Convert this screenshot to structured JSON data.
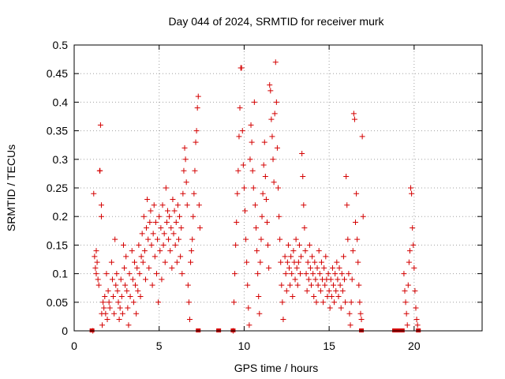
{
  "chart_data": {
    "type": "scatter",
    "title": "Day 044 of 2024, SRMTID for receiver murk",
    "xlabel": "GPS time / hours",
    "ylabel": "SRMTID / TECUs",
    "xlim": [
      0,
      24
    ],
    "ylim": [
      0,
      0.5
    ],
    "x_ticks": [
      0,
      5,
      10,
      15,
      20
    ],
    "y_ticks": [
      0,
      0.05,
      0.1,
      0.15,
      0.2,
      0.25,
      0.3,
      0.35,
      0.4,
      0.45,
      0.5
    ],
    "x_tick_labels": [
      "0",
      "5",
      "10",
      "15",
      "20"
    ],
    "y_tick_labels": [
      "0",
      "0.05",
      "0.1",
      "0.15",
      "0.2",
      "0.25",
      "0.3",
      "0.35",
      "0.4",
      "0.45",
      "0.5"
    ],
    "grid": true,
    "marker": "plus",
    "color": "#d40000",
    "zero_markers_x": [
      1.05,
      7.3,
      8.5,
      9.35,
      16.9,
      18.85,
      19.0,
      19.1,
      19.2,
      19.3,
      20.25
    ],
    "series": [
      {
        "values_note": "",
        "points": [
          [
            1.1,
            0.0
          ],
          [
            1.15,
            0.24
          ],
          [
            1.2,
            0.13
          ],
          [
            1.25,
            0.11
          ],
          [
            1.3,
            0.1
          ],
          [
            1.3,
            0.14
          ],
          [
            1.35,
            0.12
          ],
          [
            1.4,
            0.09
          ],
          [
            1.45,
            0.08
          ],
          [
            1.5,
            0.28
          ],
          [
            1.52,
            0.28
          ],
          [
            1.55,
            0.36
          ],
          [
            1.6,
            0.2
          ],
          [
            1.6,
            0.22
          ],
          [
            1.62,
            0.03
          ],
          [
            1.65,
            0.01
          ],
          [
            1.7,
            0.05
          ],
          [
            1.75,
            0.04
          ],
          [
            1.8,
            0.06
          ],
          [
            1.85,
            0.03
          ],
          [
            1.9,
            0.1
          ],
          [
            1.95,
            0.02
          ],
          [
            2.0,
            0.07
          ],
          [
            2.05,
            0.05
          ],
          [
            2.1,
            0.04
          ],
          [
            2.2,
            0.12
          ],
          [
            2.25,
            0.09
          ],
          [
            2.3,
            0.06
          ],
          [
            2.35,
            0.03
          ],
          [
            2.4,
            0.16
          ],
          [
            2.45,
            0.08
          ],
          [
            2.5,
            0.1
          ],
          [
            2.55,
            0.07
          ],
          [
            2.6,
            0.05
          ],
          [
            2.65,
            0.02
          ],
          [
            2.7,
            0.04
          ],
          [
            2.75,
            0.09
          ],
          [
            2.8,
            0.06
          ],
          [
            2.85,
            0.03
          ],
          [
            2.9,
            0.15
          ],
          [
            2.95,
            0.11
          ],
          [
            3.0,
            0.08
          ],
          [
            3.05,
            0.13
          ],
          [
            3.1,
            0.07
          ],
          [
            3.15,
            0.04
          ],
          [
            3.2,
            0.01
          ],
          [
            3.25,
            0.1
          ],
          [
            3.3,
            0.06
          ],
          [
            3.4,
            0.14
          ],
          [
            3.45,
            0.09
          ],
          [
            3.5,
            0.05
          ],
          [
            3.55,
            0.12
          ],
          [
            3.6,
            0.08
          ],
          [
            3.65,
            0.03
          ],
          [
            3.7,
            0.11
          ],
          [
            3.75,
            0.07
          ],
          [
            3.8,
            0.15
          ],
          [
            3.85,
            0.1
          ],
          [
            3.9,
            0.06
          ],
          [
            3.95,
            0.13
          ],
          [
            4.0,
            0.17
          ],
          [
            4.05,
            0.12
          ],
          [
            4.1,
            0.2
          ],
          [
            4.15,
            0.14
          ],
          [
            4.2,
            0.09
          ],
          [
            4.25,
            0.18
          ],
          [
            4.3,
            0.23
          ],
          [
            4.35,
            0.16
          ],
          [
            4.4,
            0.11
          ],
          [
            4.45,
            0.19
          ],
          [
            4.5,
            0.21
          ],
          [
            4.55,
            0.15
          ],
          [
            4.6,
            0.08
          ],
          [
            4.65,
            0.17
          ],
          [
            4.7,
            0.22
          ],
          [
            4.75,
            0.13
          ],
          [
            4.8,
            0.19
          ],
          [
            4.85,
            0.1
          ],
          [
            4.9,
            0.16
          ],
          [
            4.95,
            0.05
          ],
          [
            5.0,
            0.2
          ],
          [
            5.05,
            0.14
          ],
          [
            5.1,
            0.18
          ],
          [
            5.15,
            0.09
          ],
          [
            5.2,
            0.22
          ],
          [
            5.25,
            0.15
          ],
          [
            5.3,
            0.17
          ],
          [
            5.35,
            0.12
          ],
          [
            5.4,
            0.25
          ],
          [
            5.45,
            0.19
          ],
          [
            5.5,
            0.21
          ],
          [
            5.55,
            0.16
          ],
          [
            5.6,
            0.2
          ],
          [
            5.65,
            0.14
          ],
          [
            5.7,
            0.18
          ],
          [
            5.75,
            0.11
          ],
          [
            5.8,
            0.23
          ],
          [
            5.85,
            0.17
          ],
          [
            5.9,
            0.21
          ],
          [
            5.95,
            0.15
          ],
          [
            6.0,
            0.19
          ],
          [
            6.05,
            0.12
          ],
          [
            6.1,
            0.22
          ],
          [
            6.15,
            0.16
          ],
          [
            6.2,
            0.2
          ],
          [
            6.25,
            0.13
          ],
          [
            6.3,
            0.18
          ],
          [
            6.35,
            0.1
          ],
          [
            6.4,
            0.24
          ],
          [
            6.45,
            0.28
          ],
          [
            6.5,
            0.32
          ],
          [
            6.55,
            0.3
          ],
          [
            6.6,
            0.26
          ],
          [
            6.65,
            0.22
          ],
          [
            6.7,
            0.08
          ],
          [
            6.75,
            0.05
          ],
          [
            6.8,
            0.02
          ],
          [
            6.85,
            0.12
          ],
          [
            6.9,
            0.14
          ],
          [
            6.95,
            0.16
          ],
          [
            7.0,
            0.2
          ],
          [
            7.05,
            0.24
          ],
          [
            7.1,
            0.28
          ],
          [
            7.15,
            0.33
          ],
          [
            7.2,
            0.35
          ],
          [
            7.25,
            0.39
          ],
          [
            7.3,
            0.41
          ],
          [
            7.35,
            0.22
          ],
          [
            7.4,
            0.18
          ],
          [
            9.35,
            0.0
          ],
          [
            9.4,
            0.05
          ],
          [
            9.45,
            0.1
          ],
          [
            9.5,
            0.15
          ],
          [
            9.55,
            0.19
          ],
          [
            9.6,
            0.24
          ],
          [
            9.65,
            0.28
          ],
          [
            9.7,
            0.34
          ],
          [
            9.75,
            0.39
          ],
          [
            9.8,
            0.46
          ],
          [
            9.85,
            0.46
          ],
          [
            9.9,
            0.35
          ],
          [
            9.95,
            0.29
          ],
          [
            10.0,
            0.25
          ],
          [
            10.05,
            0.21
          ],
          [
            10.1,
            0.16
          ],
          [
            10.15,
            0.12
          ],
          [
            10.2,
            0.08
          ],
          [
            10.25,
            0.04
          ],
          [
            10.3,
            0.01
          ],
          [
            10.35,
            0.3
          ],
          [
            10.4,
            0.36
          ],
          [
            10.45,
            0.33
          ],
          [
            10.5,
            0.28
          ],
          [
            10.55,
            0.25
          ],
          [
            10.6,
            0.4
          ],
          [
            10.65,
            0.22
          ],
          [
            10.7,
            0.18
          ],
          [
            10.75,
            0.14
          ],
          [
            10.8,
            0.1
          ],
          [
            10.85,
            0.06
          ],
          [
            10.9,
            0.03
          ],
          [
            10.95,
            0.12
          ],
          [
            11.0,
            0.16
          ],
          [
            11.05,
            0.2
          ],
          [
            11.1,
            0.24
          ],
          [
            11.15,
            0.29
          ],
          [
            11.2,
            0.33
          ],
          [
            11.25,
            0.27
          ],
          [
            11.3,
            0.23
          ],
          [
            11.35,
            0.19
          ],
          [
            11.4,
            0.15
          ],
          [
            11.45,
            0.11
          ],
          [
            11.5,
            0.43
          ],
          [
            11.55,
            0.42
          ],
          [
            11.6,
            0.37
          ],
          [
            11.65,
            0.34
          ],
          [
            11.7,
            0.3
          ],
          [
            11.75,
            0.26
          ],
          [
            11.8,
            0.38
          ],
          [
            11.85,
            0.47
          ],
          [
            11.9,
            0.4
          ],
          [
            11.95,
            0.32
          ],
          [
            12.0,
            0.25
          ],
          [
            12.05,
            0.2
          ],
          [
            12.1,
            0.16
          ],
          [
            12.15,
            0.12
          ],
          [
            12.2,
            0.08
          ],
          [
            12.25,
            0.05
          ],
          [
            12.3,
            0.02
          ],
          [
            12.4,
            0.13
          ],
          [
            12.45,
            0.1
          ],
          [
            12.5,
            0.07
          ],
          [
            12.55,
            0.12
          ],
          [
            12.6,
            0.15
          ],
          [
            12.65,
            0.11
          ],
          [
            12.7,
            0.08
          ],
          [
            12.75,
            0.13
          ],
          [
            12.8,
            0.1
          ],
          [
            12.85,
            0.06
          ],
          [
            12.9,
            0.14
          ],
          [
            12.95,
            0.12
          ],
          [
            13.0,
            0.09
          ],
          [
            13.05,
            0.16
          ],
          [
            13.1,
            0.11
          ],
          [
            13.15,
            0.08
          ],
          [
            13.2,
            0.12
          ],
          [
            13.25,
            0.15
          ],
          [
            13.3,
            0.1
          ],
          [
            13.35,
            0.13
          ],
          [
            13.4,
            0.31
          ],
          [
            13.45,
            0.27
          ],
          [
            13.5,
            0.22
          ],
          [
            13.55,
            0.18
          ],
          [
            13.6,
            0.14
          ],
          [
            13.65,
            0.1
          ],
          [
            13.7,
            0.07
          ],
          [
            13.75,
            0.12
          ],
          [
            13.8,
            0.09
          ],
          [
            13.85,
            0.15
          ],
          [
            13.9,
            0.11
          ],
          [
            13.95,
            0.08
          ],
          [
            14.0,
            0.13
          ],
          [
            14.05,
            0.1
          ],
          [
            14.1,
            0.06
          ],
          [
            14.15,
            0.12
          ],
          [
            14.2,
            0.09
          ],
          [
            14.25,
            0.05
          ],
          [
            14.3,
            0.11
          ],
          [
            14.35,
            0.08
          ],
          [
            14.4,
            0.14
          ],
          [
            14.45,
            0.1
          ],
          [
            14.5,
            0.07
          ],
          [
            14.55,
            0.12
          ],
          [
            14.6,
            0.09
          ],
          [
            14.65,
            0.05
          ],
          [
            14.7,
            0.11
          ],
          [
            14.75,
            0.08
          ],
          [
            14.8,
            0.13
          ],
          [
            14.85,
            0.09
          ],
          [
            14.9,
            0.06
          ],
          [
            14.95,
            0.1
          ],
          [
            15.0,
            0.07
          ],
          [
            15.05,
            0.04
          ],
          [
            15.1,
            0.09
          ],
          [
            15.15,
            0.06
          ],
          [
            15.2,
            0.11
          ],
          [
            15.25,
            0.08
          ],
          [
            15.3,
            0.05
          ],
          [
            15.35,
            0.1
          ],
          [
            15.4,
            0.07
          ],
          [
            15.45,
            0.12
          ],
          [
            15.5,
            0.09
          ],
          [
            15.55,
            0.06
          ],
          [
            15.6,
            0.11
          ],
          [
            15.65,
            0.08
          ],
          [
            15.7,
            0.04
          ],
          [
            15.75,
            0.1
          ],
          [
            15.8,
            0.07
          ],
          [
            15.85,
            0.13
          ],
          [
            15.9,
            0.09
          ],
          [
            15.95,
            0.05
          ],
          [
            16.0,
            0.27
          ],
          [
            16.05,
            0.22
          ],
          [
            16.1,
            0.16
          ],
          [
            16.15,
            0.1
          ],
          [
            16.2,
            0.03
          ],
          [
            16.25,
            0.01
          ],
          [
            16.3,
            0.05
          ],
          [
            16.35,
            0.09
          ],
          [
            16.4,
            0.14
          ],
          [
            16.45,
            0.38
          ],
          [
            16.5,
            0.37
          ],
          [
            16.55,
            0.19
          ],
          [
            16.6,
            0.24
          ],
          [
            16.65,
            0.16
          ],
          [
            16.7,
            0.12
          ],
          [
            16.75,
            0.08
          ],
          [
            16.8,
            0.05
          ],
          [
            16.85,
            0.03
          ],
          [
            16.9,
            0.02
          ],
          [
            16.95,
            0.34
          ],
          [
            17.0,
            0.2
          ],
          [
            19.4,
            0.1
          ],
          [
            19.45,
            0.07
          ],
          [
            19.5,
            0.05
          ],
          [
            19.55,
            0.03
          ],
          [
            19.6,
            0.01
          ],
          [
            19.65,
            0.08
          ],
          [
            19.7,
            0.12
          ],
          [
            19.75,
            0.14
          ],
          [
            19.8,
            0.25
          ],
          [
            19.85,
            0.24
          ],
          [
            19.9,
            0.18
          ],
          [
            19.95,
            0.15
          ],
          [
            20.0,
            0.11
          ],
          [
            20.05,
            0.07
          ],
          [
            20.1,
            0.04
          ],
          [
            20.15,
            0.02
          ],
          [
            20.2,
            0.01
          ]
        ]
      }
    ]
  }
}
